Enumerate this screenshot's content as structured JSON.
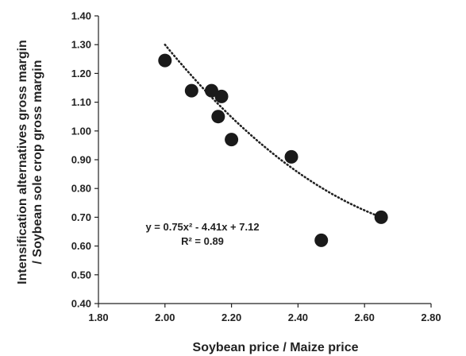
{
  "chart_data": {
    "type": "scatter",
    "xlabel": "Soybean price / Maize price",
    "ylabel_lines": [
      "Intensification alternatives gross margin",
      "/ Soybean sole crop gross margin"
    ],
    "xlim": [
      1.8,
      2.8
    ],
    "ylim": [
      0.4,
      1.4
    ],
    "x_ticks": [
      "1.80",
      "2.00",
      "2.20",
      "2.40",
      "2.60",
      "2.80"
    ],
    "y_ticks": [
      "0.40",
      "0.50",
      "0.60",
      "0.70",
      "0.80",
      "0.90",
      "1.00",
      "1.10",
      "1.20",
      "1.30",
      "1.40"
    ],
    "grid": false,
    "points": [
      {
        "x": 2.0,
        "y": 1.245
      },
      {
        "x": 2.08,
        "y": 1.14
      },
      {
        "x": 2.14,
        "y": 1.14
      },
      {
        "x": 2.17,
        "y": 1.12
      },
      {
        "x": 2.16,
        "y": 1.05
      },
      {
        "x": 2.2,
        "y": 0.97
      },
      {
        "x": 2.38,
        "y": 0.91
      },
      {
        "x": 2.47,
        "y": 0.62
      },
      {
        "x": 2.65,
        "y": 0.7
      }
    ],
    "trendline": {
      "type": "polynomial",
      "coefficients": [
        0.75,
        -4.41,
        7.12
      ],
      "x_range": [
        2.0,
        2.63
      ],
      "style": "dotted"
    },
    "annotations": {
      "equation": "y = 0.75x² - 4.41x + 7.12",
      "r_squared": "R² = 0.89"
    }
  }
}
